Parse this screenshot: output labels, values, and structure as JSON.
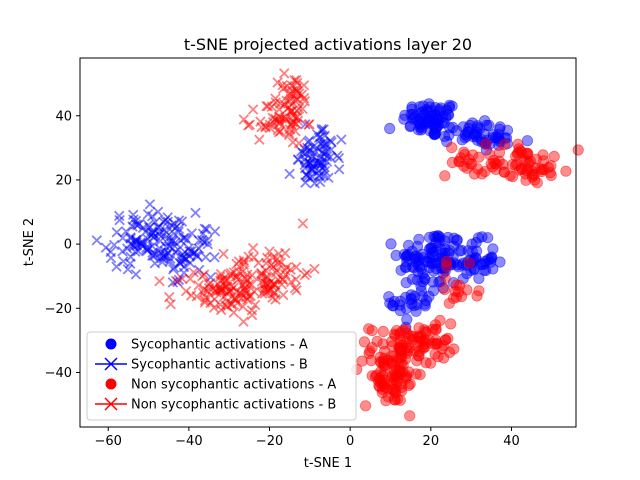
{
  "chart_data": {
    "type": "scatter",
    "title": "t-SNE projected activations layer 20",
    "xlabel": "t-SNE 1",
    "ylabel": "t-SNE 2",
    "xlim": [
      -67,
      56
    ],
    "ylim": [
      -57,
      58
    ],
    "xticks": [
      -60,
      -40,
      -20,
      0,
      20,
      40
    ],
    "yticks": [
      -40,
      -20,
      0,
      20,
      40
    ],
    "xtick_labels": [
      "−60",
      "−40",
      "−20",
      "0",
      "20",
      "40"
    ],
    "ytick_labels": [
      "−40",
      "−20",
      "0",
      "20",
      "40"
    ],
    "grid": false,
    "legend_position": "lower-left",
    "colors": {
      "sycophantic": "#0000ff",
      "non_sycophantic": "#ff0000"
    },
    "series": [
      {
        "name": "Sycophantic activations - A",
        "marker": "circle",
        "color": "#0000ff",
        "clusters": [
          {
            "cx": 20,
            "cy": 39,
            "sx": 3.5,
            "sy": 2.8,
            "n": 70
          },
          {
            "cx": 30,
            "cy": 35,
            "sx": 5,
            "sy": 2.2,
            "n": 40
          },
          {
            "cx": 37,
            "cy": 32,
            "sx": 3,
            "sy": 1.5,
            "n": 14
          },
          {
            "cx": 20,
            "cy": -5,
            "sx": 4,
            "sy": 5,
            "n": 95
          },
          {
            "cx": 30,
            "cy": -5,
            "sx": 3,
            "sy": 3,
            "n": 45
          },
          {
            "cx": 16,
            "cy": -18,
            "sx": 3,
            "sy": 3.5,
            "n": 25
          }
        ]
      },
      {
        "name": "Sycophantic activations - B",
        "marker": "x",
        "color": "#0000ff",
        "clusters": [
          {
            "cx": -49,
            "cy": 1,
            "sx": 5.5,
            "sy": 4.5,
            "n": 120
          },
          {
            "cx": -40,
            "cy": -3,
            "sx": 3,
            "sy": 3.5,
            "n": 35
          },
          {
            "cx": -8,
            "cy": 24,
            "sx": 3,
            "sy": 3,
            "n": 55
          },
          {
            "cx": -7,
            "cy": 32,
            "sx": 2.5,
            "sy": 3,
            "n": 25
          }
        ]
      },
      {
        "name": "Non sycophantic activations - A",
        "marker": "circle",
        "color": "#ff0000",
        "clusters": [
          {
            "cx": 37,
            "cy": 26,
            "sx": 6.5,
            "sy": 2.5,
            "n": 60
          },
          {
            "cx": 46,
            "cy": 23,
            "sx": 2.5,
            "sy": 2,
            "n": 20
          },
          {
            "cx": 13,
            "cy": -33,
            "sx": 4,
            "sy": 4,
            "n": 80
          },
          {
            "cx": 10,
            "cy": -43,
            "sx": 3.5,
            "sy": 3.5,
            "n": 60
          },
          {
            "cx": 20,
            "cy": -30,
            "sx": 3,
            "sy": 3,
            "n": 25
          },
          {
            "cx": 27,
            "cy": -15,
            "sx": 3,
            "sy": 4,
            "n": 18
          }
        ]
      },
      {
        "name": "Non sycophantic activations - B",
        "marker": "x",
        "color": "#ff0000",
        "clusters": [
          {
            "cx": -32,
            "cy": -15,
            "sx": 6,
            "sy": 3.5,
            "n": 90
          },
          {
            "cx": -20,
            "cy": -9,
            "sx": 5,
            "sy": 4.5,
            "n": 75
          },
          {
            "cx": -17,
            "cy": 38,
            "sx": 3,
            "sy": 3.5,
            "n": 55
          },
          {
            "cx": -14,
            "cy": 47,
            "sx": 2,
            "sy": 3,
            "n": 30
          }
        ]
      }
    ]
  }
}
